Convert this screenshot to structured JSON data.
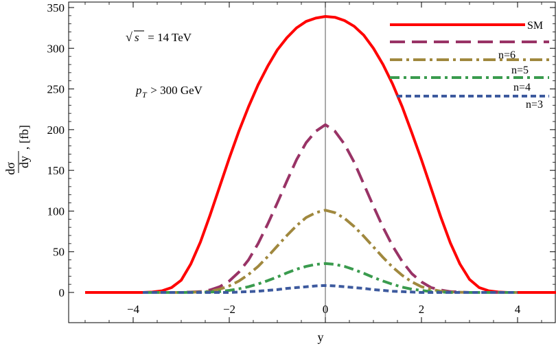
{
  "chart_data": {
    "type": "line",
    "title": "",
    "xlabel": "y",
    "ylabel": "dσ/dy, [fb]",
    "ylabel_num": "dσ",
    "ylabel_den": "dy",
    "ylabel_unit": ", [fb]",
    "xlim": [
      -5,
      4.8
    ],
    "ylim": [
      -8,
      350
    ],
    "xticks": [
      -4,
      -2,
      0,
      2,
      4
    ],
    "yticks": [
      0,
      50,
      100,
      150,
      200,
      250,
      300,
      350
    ],
    "xtick_labels": [
      "−4",
      "−2",
      "0",
      "2",
      "4"
    ],
    "ytick_labels": [
      "0",
      "50",
      "100",
      "150",
      "200",
      "250",
      "300",
      "350"
    ],
    "annotations": {
      "sqrt_s": "s",
      "energy": " = 14 TeV",
      "pt_p": "p",
      "pt_sub": "T",
      "pt_rest": " > 300 GeV"
    },
    "series": [
      {
        "name": "SM",
        "color": "#ff0000",
        "dash": "solid",
        "points": [
          [
            -5,
            0
          ],
          [
            -3.8,
            0
          ],
          [
            -3.6,
            0.5
          ],
          [
            -3.4,
            2
          ],
          [
            -3.2,
            6
          ],
          [
            -3.0,
            15
          ],
          [
            -2.8,
            35
          ],
          [
            -2.6,
            62
          ],
          [
            -2.4,
            95
          ],
          [
            -2.2,
            130
          ],
          [
            -2.0,
            165
          ],
          [
            -1.8,
            198
          ],
          [
            -1.6,
            228
          ],
          [
            -1.4,
            255
          ],
          [
            -1.2,
            278
          ],
          [
            -1.0,
            298
          ],
          [
            -0.8,
            313
          ],
          [
            -0.6,
            325
          ],
          [
            -0.4,
            333
          ],
          [
            -0.2,
            337
          ],
          [
            0,
            339
          ],
          [
            0.2,
            338
          ],
          [
            0.4,
            334
          ],
          [
            0.6,
            327
          ],
          [
            0.8,
            316
          ],
          [
            1.0,
            300
          ],
          [
            1.2,
            280
          ],
          [
            1.4,
            256
          ],
          [
            1.6,
            228
          ],
          [
            1.8,
            196
          ],
          [
            2.0,
            163
          ],
          [
            2.2,
            128
          ],
          [
            2.4,
            93
          ],
          [
            2.6,
            61
          ],
          [
            2.8,
            35
          ],
          [
            3.0,
            16
          ],
          [
            3.2,
            6
          ],
          [
            3.4,
            2
          ],
          [
            3.6,
            0.5
          ],
          [
            3.8,
            0
          ],
          [
            4.8,
            0
          ]
        ]
      },
      {
        "name": "n=6",
        "color": "#993366",
        "dash": "22 10",
        "points": [
          [
            -3.8,
            0
          ],
          [
            -3.0,
            0
          ],
          [
            -2.6,
            1
          ],
          [
            -2.4,
            3
          ],
          [
            -2.2,
            7
          ],
          [
            -2.0,
            14
          ],
          [
            -1.8,
            25
          ],
          [
            -1.6,
            40
          ],
          [
            -1.4,
            60
          ],
          [
            -1.2,
            84
          ],
          [
            -1.0,
            110
          ],
          [
            -0.8,
            137
          ],
          [
            -0.6,
            163
          ],
          [
            -0.4,
            184
          ],
          [
            -0.2,
            198
          ],
          [
            0,
            206
          ],
          [
            0.2,
            198
          ],
          [
            0.4,
            182
          ],
          [
            0.6,
            160
          ],
          [
            0.8,
            133
          ],
          [
            1.0,
            106
          ],
          [
            1.2,
            80
          ],
          [
            1.4,
            57
          ],
          [
            1.6,
            38
          ],
          [
            1.8,
            23
          ],
          [
            2.0,
            13
          ],
          [
            2.2,
            6
          ],
          [
            2.4,
            3
          ],
          [
            2.6,
            1
          ],
          [
            3.0,
            0
          ],
          [
            4.0,
            0
          ]
        ]
      },
      {
        "name": "n=5",
        "color": "#a0883e",
        "dash": "18 6 4 6",
        "points": [
          [
            -3.8,
            0
          ],
          [
            -3.0,
            0
          ],
          [
            -2.6,
            0.5
          ],
          [
            -2.4,
            1.5
          ],
          [
            -2.2,
            4
          ],
          [
            -2.0,
            8
          ],
          [
            -1.8,
            14
          ],
          [
            -1.6,
            22
          ],
          [
            -1.4,
            32
          ],
          [
            -1.2,
            44
          ],
          [
            -1.0,
            57
          ],
          [
            -0.8,
            70
          ],
          [
            -0.6,
            82
          ],
          [
            -0.4,
            92
          ],
          [
            -0.2,
            98
          ],
          [
            0,
            101
          ],
          [
            0.2,
            98
          ],
          [
            0.4,
            91
          ],
          [
            0.6,
            81
          ],
          [
            0.8,
            69
          ],
          [
            1.0,
            56
          ],
          [
            1.2,
            43
          ],
          [
            1.4,
            31
          ],
          [
            1.6,
            21
          ],
          [
            1.8,
            13
          ],
          [
            2.0,
            7
          ],
          [
            2.2,
            4
          ],
          [
            2.4,
            1.5
          ],
          [
            2.6,
            0.5
          ],
          [
            3.0,
            0
          ],
          [
            4.0,
            0
          ]
        ]
      },
      {
        "name": "n=4",
        "color": "#3a9b4e",
        "dash": "14 6 4 6",
        "points": [
          [
            -3.8,
            0
          ],
          [
            -3.0,
            0
          ],
          [
            -2.4,
            0.5
          ],
          [
            -2.2,
            1
          ],
          [
            -2.0,
            2.5
          ],
          [
            -1.8,
            4.5
          ],
          [
            -1.6,
            7
          ],
          [
            -1.4,
            10.5
          ],
          [
            -1.2,
            14.5
          ],
          [
            -1.0,
            19
          ],
          [
            -0.8,
            24
          ],
          [
            -0.6,
            28.5
          ],
          [
            -0.4,
            32
          ],
          [
            -0.2,
            34.5
          ],
          [
            0,
            35.5
          ],
          [
            0.2,
            34.5
          ],
          [
            0.4,
            32
          ],
          [
            0.6,
            28
          ],
          [
            0.8,
            23.5
          ],
          [
            1.0,
            18.5
          ],
          [
            1.2,
            14
          ],
          [
            1.4,
            10
          ],
          [
            1.6,
            6.5
          ],
          [
            1.8,
            4
          ],
          [
            2.0,
            2.5
          ],
          [
            2.2,
            1
          ],
          [
            2.6,
            0
          ],
          [
            3.0,
            0
          ],
          [
            4.0,
            0
          ]
        ]
      },
      {
        "name": "n=3",
        "color": "#3d5a9e",
        "dash": "8 5",
        "points": [
          [
            -3.8,
            0
          ],
          [
            -3.0,
            0
          ],
          [
            -2.0,
            0
          ],
          [
            -1.8,
            0.5
          ],
          [
            -1.6,
            1
          ],
          [
            -1.4,
            1.5
          ],
          [
            -1.2,
            2.5
          ],
          [
            -1.0,
            3.5
          ],
          [
            -0.8,
            5
          ],
          [
            -0.6,
            6
          ],
          [
            -0.4,
            7
          ],
          [
            -0.2,
            8
          ],
          [
            0,
            8.5
          ],
          [
            0.2,
            8
          ],
          [
            0.4,
            7
          ],
          [
            0.6,
            6
          ],
          [
            0.8,
            5
          ],
          [
            1.0,
            3.5
          ],
          [
            1.2,
            2.5
          ],
          [
            1.4,
            1.5
          ],
          [
            1.6,
            1
          ],
          [
            1.8,
            0.5
          ],
          [
            2.0,
            0
          ],
          [
            3.0,
            0
          ],
          [
            4.0,
            0
          ]
        ]
      }
    ]
  }
}
